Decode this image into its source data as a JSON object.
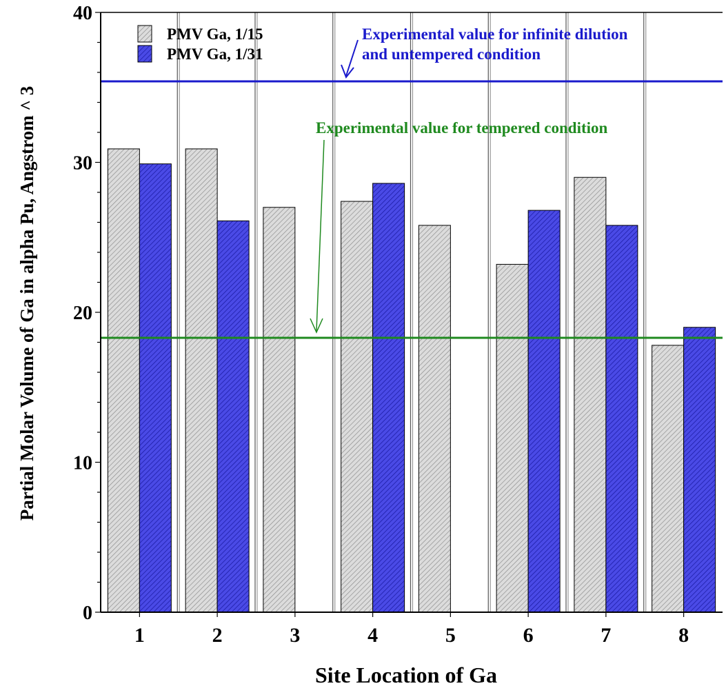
{
  "chart_data": {
    "type": "bar",
    "categories": [
      "1",
      "2",
      "3",
      "4",
      "5",
      "6",
      "7",
      "8"
    ],
    "series": [
      {
        "name": "PMV Ga, 1/15",
        "values": [
          30.9,
          30.9,
          27.0,
          27.4,
          25.8,
          23.2,
          29.0,
          17.8
        ],
        "color": "#d3d3d3",
        "pattern": "diagonal-hatch"
      },
      {
        "name": "PMV Ga, 1/31",
        "values": [
          29.9,
          26.1,
          null,
          28.6,
          null,
          26.8,
          25.8,
          19.0
        ],
        "color": "#3a3ad6",
        "pattern": "diagonal-hatch"
      }
    ],
    "reference_lines": [
      {
        "value": 35.4,
        "label_lines": [
          "Experimental value for infinite dilution",
          "and untempered condition"
        ],
        "color": "#1a1acc"
      },
      {
        "value": 18.3,
        "label_lines": [
          "Experimental value for tempered condition"
        ],
        "color": "#1f8a1f"
      }
    ],
    "xlabel": "Site Location of Ga",
    "ylabel": "Partial Molar Volume of Ga in alpha Pu, Angstrom ^ 3",
    "ylim": [
      0,
      40
    ],
    "yticks": [
      "0",
      "10",
      "20",
      "30",
      "40"
    ],
    "grid": "vertical separators between sites",
    "legend_position": "top-left"
  }
}
